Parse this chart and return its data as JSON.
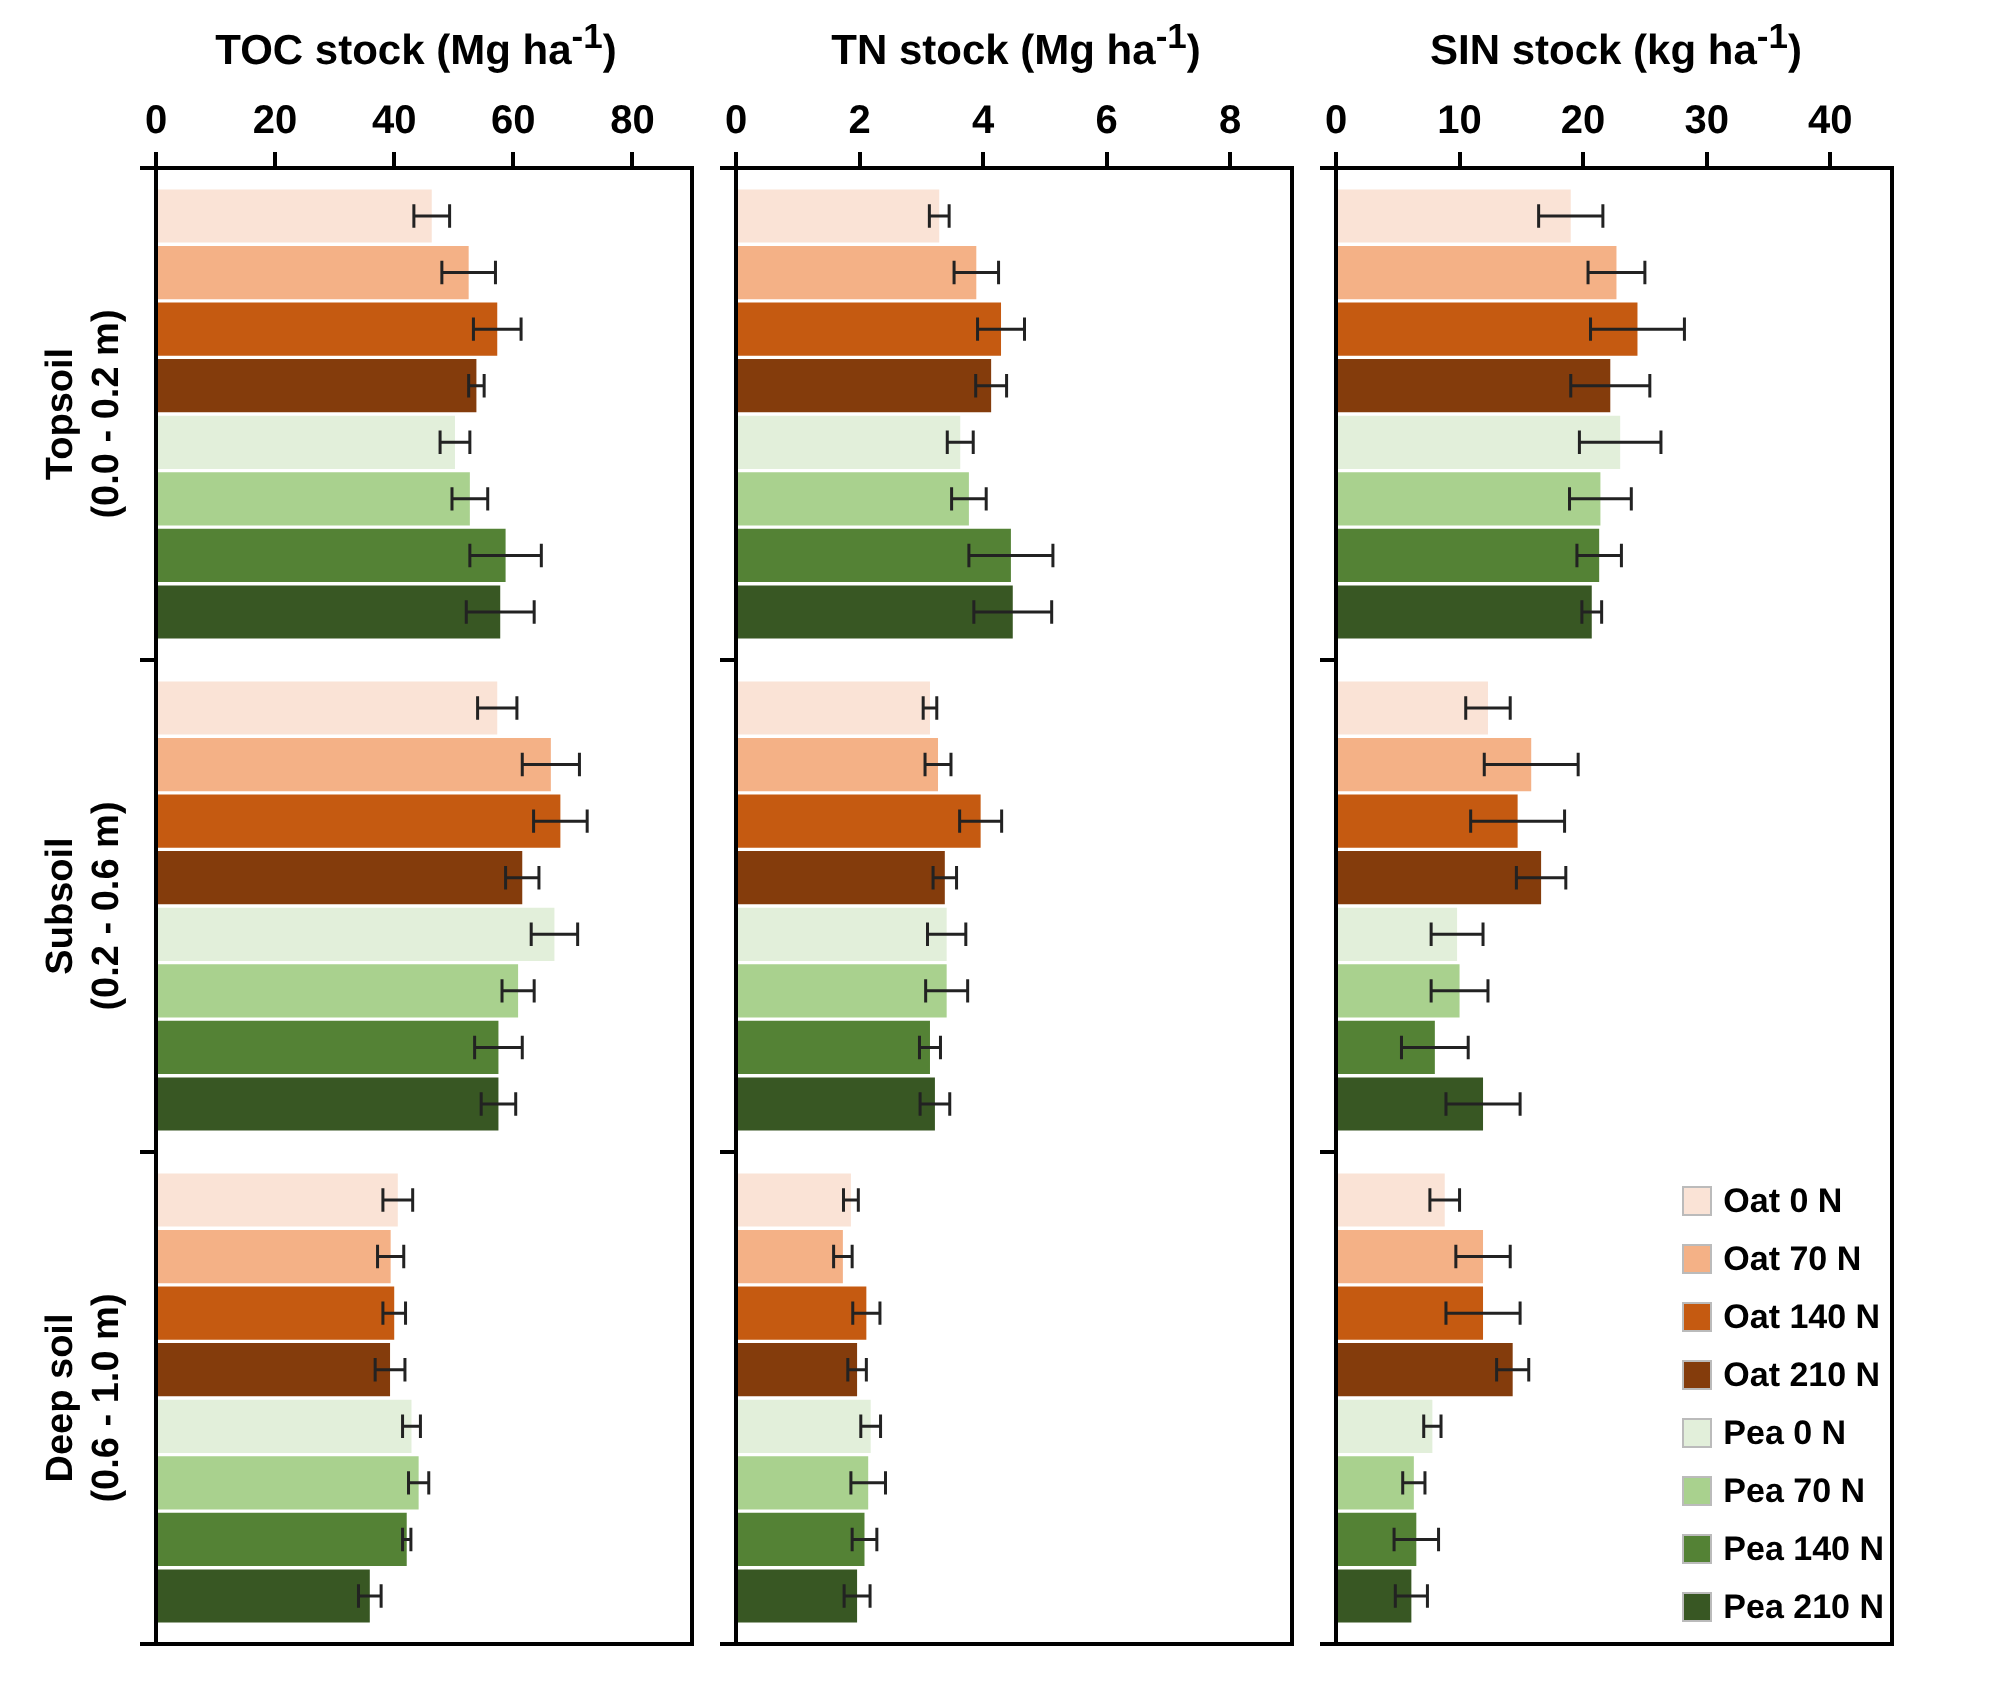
{
  "chart_data": [
    {
      "type": "bar",
      "orientation": "horizontal",
      "title": "TOC stock (Mg ha$^{-1}$)",
      "categories": [
        "Topsoil\n(0.0 - 0.2 m)",
        "Subsoil\n(0.2 - 0.6 m)",
        "Deep soil\n(0.6 - 1.0 m)"
      ],
      "xlim": [
        0,
        90
      ],
      "xticks": [
        0,
        20,
        40,
        60,
        80
      ],
      "grid": false,
      "legend": false,
      "series": [
        {
          "color": "#fae3d6",
          "values": [
            46.3,
            57.3,
            40.6
          ],
          "errors": [
            3,
            3.3,
            2.5
          ]
        },
        {
          "color": "#f4b186",
          "values": [
            52.5,
            66.3,
            39.4
          ],
          "errors": [
            4.5,
            4.8,
            2.2
          ]
        },
        {
          "color": "#c55a11",
          "values": [
            57.3,
            67.9,
            40
          ],
          "errors": [
            4,
            4.5,
            1.9
          ]
        },
        {
          "color": "#843c0c",
          "values": [
            53.8,
            61.5,
            39.3
          ],
          "errors": [
            1.3,
            2.8,
            2.5
          ]
        },
        {
          "color": "#e2efda",
          "values": [
            50.2,
            66.9,
            42.9
          ],
          "errors": [
            2.5,
            3.9,
            1.5
          ]
        },
        {
          "color": "#a9d18e",
          "values": [
            52.7,
            60.8,
            44.1
          ],
          "errors": [
            3,
            2.7,
            1.7
          ]
        },
        {
          "color": "#548235",
          "values": [
            58.7,
            57.5,
            42.1
          ],
          "errors": [
            6,
            4,
            0.7
          ]
        },
        {
          "color": "#385723",
          "values": [
            57.8,
            57.5,
            35.9
          ],
          "errors": [
            5.7,
            2.9,
            1.9
          ]
        }
      ]
    },
    {
      "type": "bar",
      "orientation": "horizontal",
      "title": "TN stock (Mg ha$^{-1}$)",
      "categories": [
        null,
        null,
        null
      ],
      "xlim": [
        0,
        9
      ],
      "xticks": [
        0,
        2,
        4,
        6,
        8
      ],
      "grid": false,
      "legend": false,
      "tick_labels": "x",
      "series": [
        {
          "color": "#fae3d6",
          "values": [
            3.29,
            3.14,
            1.86
          ],
          "errors": [
            0.16,
            0.11,
            0.12
          ]
        },
        {
          "color": "#f4b186",
          "values": [
            3.89,
            3.27,
            1.73
          ],
          "errors": [
            0.36,
            0.21,
            0.15
          ]
        },
        {
          "color": "#c55a11",
          "values": [
            4.29,
            3.96,
            2.11
          ],
          "errors": [
            0.38,
            0.34,
            0.22
          ]
        },
        {
          "color": "#843c0c",
          "values": [
            4.13,
            3.38,
            1.96
          ],
          "errors": [
            0.25,
            0.19,
            0.15
          ]
        },
        {
          "color": "#e2efda",
          "values": [
            3.63,
            3.41,
            2.18
          ],
          "errors": [
            0.21,
            0.31,
            0.16
          ]
        },
        {
          "color": "#a9d18e",
          "values": [
            3.77,
            3.41,
            2.14
          ],
          "errors": [
            0.28,
            0.34,
            0.28
          ]
        },
        {
          "color": "#548235",
          "values": [
            4.45,
            3.14,
            2.08
          ],
          "errors": [
            0.68,
            0.17,
            0.2
          ]
        },
        {
          "color": "#385723",
          "values": [
            4.48,
            3.22,
            1.96
          ],
          "errors": [
            0.63,
            0.24,
            0.21
          ]
        }
      ]
    },
    {
      "type": "bar",
      "orientation": "horizontal",
      "title": "SIN stock (kg ha$^{-1}$)",
      "categories": [
        null,
        null,
        null
      ],
      "xlim": [
        0,
        45
      ],
      "xticks": [
        0,
        10,
        20,
        30,
        40
      ],
      "grid": false,
      "legend": "bottom right",
      "tick_labels": "x",
      "series": [
        {
          "name": "Oat 0 N",
          "color": "#fae3d6",
          "values": [
            19.0,
            12.3,
            8.8
          ],
          "errors": [
            2.6,
            1.8,
            1.2
          ]
        },
        {
          "name": "Oat 70 N",
          "color": "#f4b186",
          "values": [
            22.7,
            15.8,
            11.9
          ],
          "errors": [
            2.3,
            3.8,
            2.2
          ]
        },
        {
          "name": "Oat 140 N",
          "color": "#c55a11",
          "values": [
            24.4,
            14.7,
            11.9
          ],
          "errors": [
            3.8,
            3.8,
            3.0
          ]
        },
        {
          "name": "Oat 210 N",
          "color": "#843c0c",
          "values": [
            22.2,
            16.6,
            14.3
          ],
          "errors": [
            3.2,
            2.0,
            1.3
          ]
        },
        {
          "name": "Pea 0 N",
          "color": "#e2efda",
          "values": [
            23.0,
            9.8,
            7.8
          ],
          "errors": [
            3.3,
            2.1,
            0.7
          ]
        },
        {
          "name": "Pea 70 N",
          "color": "#a9d18e",
          "values": [
            21.4,
            10.0,
            6.3
          ],
          "errors": [
            2.5,
            2.3,
            0.9
          ]
        },
        {
          "name": "Pea 140 N",
          "color": "#548235",
          "values": [
            21.3,
            8.0,
            6.5
          ],
          "errors": [
            1.8,
            2.7,
            1.8
          ]
        },
        {
          "name": "Pea 210 N",
          "color": "#385723",
          "values": [
            20.7,
            11.9,
            6.1
          ],
          "errors": [
            0.8,
            3.0,
            1.3
          ]
        }
      ]
    }
  ]
}
